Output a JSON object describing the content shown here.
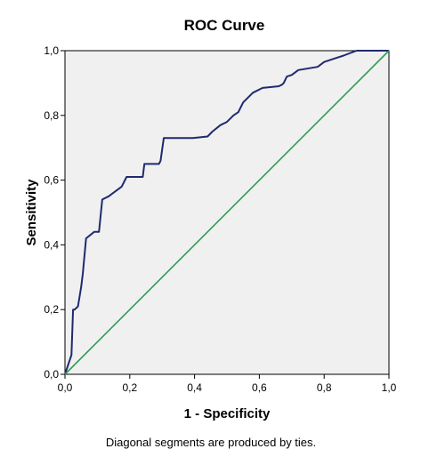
{
  "chart_data": {
    "type": "line",
    "title": "ROC Curve",
    "xlabel": "1 - Specificity",
    "ylabel": "Sensitivity",
    "footnote": "Diagonal segments are produced by ties.",
    "xlim": [
      0,
      1
    ],
    "ylim": [
      0,
      1
    ],
    "x_ticks": [
      "0,0",
      "0,2",
      "0,4",
      "0,6",
      "0,8",
      "1,0"
    ],
    "y_ticks": [
      "0,0",
      "0,2",
      "0,4",
      "0,6",
      "0,8",
      "1,0"
    ],
    "grid": false,
    "legend": "none",
    "series": [
      {
        "color": "#1f2a6e",
        "x": [
          0.0,
          0.02,
          0.025,
          0.03,
          0.04,
          0.05,
          0.055,
          0.065,
          0.09,
          0.105,
          0.115,
          0.135,
          0.175,
          0.19,
          0.195,
          0.24,
          0.245,
          0.29,
          0.295,
          0.305,
          0.31,
          0.395,
          0.44,
          0.455,
          0.48,
          0.5,
          0.52,
          0.535,
          0.55,
          0.58,
          0.61,
          0.66,
          0.67,
          0.675,
          0.685,
          0.7,
          0.72,
          0.78,
          0.8,
          0.83,
          0.86,
          0.9,
          1.0
        ],
        "y": [
          0.0,
          0.06,
          0.2,
          0.2,
          0.21,
          0.27,
          0.31,
          0.42,
          0.44,
          0.44,
          0.54,
          0.55,
          0.58,
          0.61,
          0.61,
          0.61,
          0.65,
          0.65,
          0.66,
          0.73,
          0.73,
          0.73,
          0.735,
          0.75,
          0.77,
          0.78,
          0.8,
          0.81,
          0.84,
          0.87,
          0.885,
          0.89,
          0.895,
          0.9,
          0.92,
          0.925,
          0.94,
          0.95,
          0.965,
          0.975,
          0.985,
          1.0,
          1.0
        ]
      },
      {
        "color": "#2e9e4f",
        "x": [
          0,
          1
        ],
        "y": [
          0,
          1
        ]
      }
    ]
  }
}
